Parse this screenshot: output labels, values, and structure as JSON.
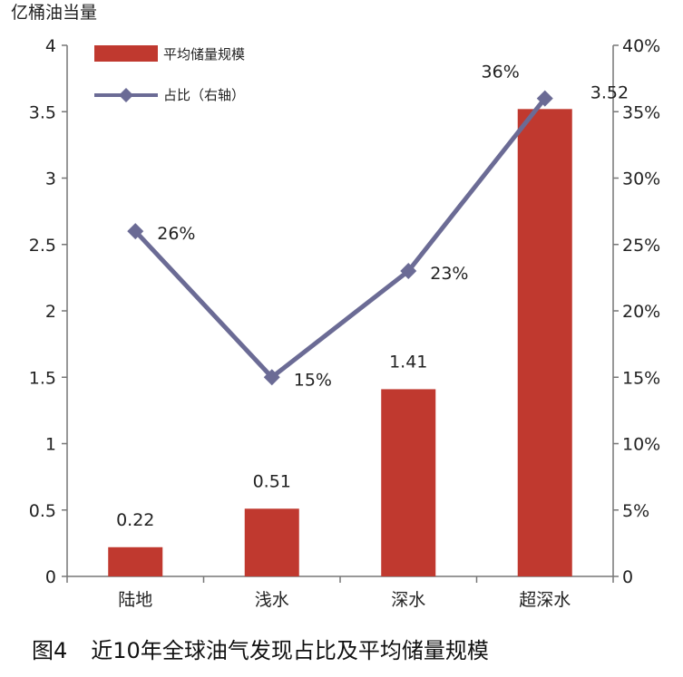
{
  "chart_data": {
    "type": "bar",
    "ylabel_left": "亿桶油当量",
    "categories": [
      "陆地",
      "浅水",
      "深水",
      "超深水"
    ],
    "series": [
      {
        "name": "平均储量规模",
        "type": "bar",
        "axis": "left",
        "values": [
          0.22,
          0.51,
          1.41,
          3.52
        ],
        "labels": [
          "0.22",
          "0.51",
          "1.41",
          "3.52"
        ],
        "color": "#c0392f"
      },
      {
        "name": "占比（右轴）",
        "type": "line",
        "axis": "right",
        "values": [
          26,
          15,
          23,
          36
        ],
        "labels": [
          "26%",
          "15%",
          "23%",
          "36%"
        ],
        "color": "#6b6b95"
      }
    ],
    "ylim_left": [
      0,
      4
    ],
    "yticks_left": [
      "0",
      "0.5",
      "1",
      "1.5",
      "2",
      "2.5",
      "3",
      "3.5",
      "4"
    ],
    "ylim_right": [
      0,
      40
    ],
    "yticks_right": [
      "0",
      "5%",
      "10%",
      "15%",
      "20%",
      "25%",
      "30%",
      "35%",
      "40%"
    ],
    "grid": false,
    "legend": "top-left"
  },
  "caption": {
    "figure_no": "图4",
    "title": "近10年全球油气发现占比及平均储量规模"
  }
}
